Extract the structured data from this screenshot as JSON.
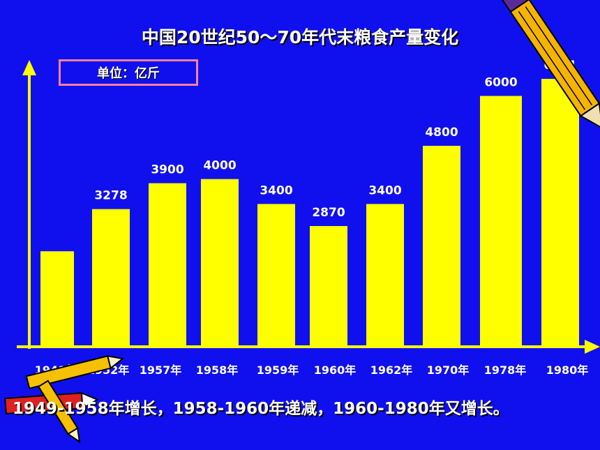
{
  "chart_data": {
    "type": "bar",
    "title": "中国20世纪50～70年代末粮食产量变化",
    "unit_label": "单位：亿斤",
    "categories": [
      "1949年",
      "1952年",
      "1957年",
      "1958年",
      "1959年",
      "1960年",
      "1962年",
      "1970年",
      "1978年",
      "1980年"
    ],
    "values": [
      2263,
      3278,
      3900,
      4000,
      3400,
      2870,
      3400,
      4800,
      6000,
      6411
    ],
    "data_labels": [
      "",
      "3278",
      "3900",
      "4000",
      "3400",
      "2870",
      "3400",
      "4800",
      "6000",
      "6411"
    ],
    "ylim": [
      0,
      7000
    ],
    "xlabel": "",
    "ylabel": "",
    "grid": false,
    "legend": "none",
    "bar_color": "#ffff00",
    "axis_color": "#ffff00",
    "background": "#1010ee"
  },
  "conclusion": "1949-1958年增长，1958-1960年递减，1960-1980年又增长。",
  "decorations": [
    "pencil-icon",
    "crayon-icon"
  ]
}
